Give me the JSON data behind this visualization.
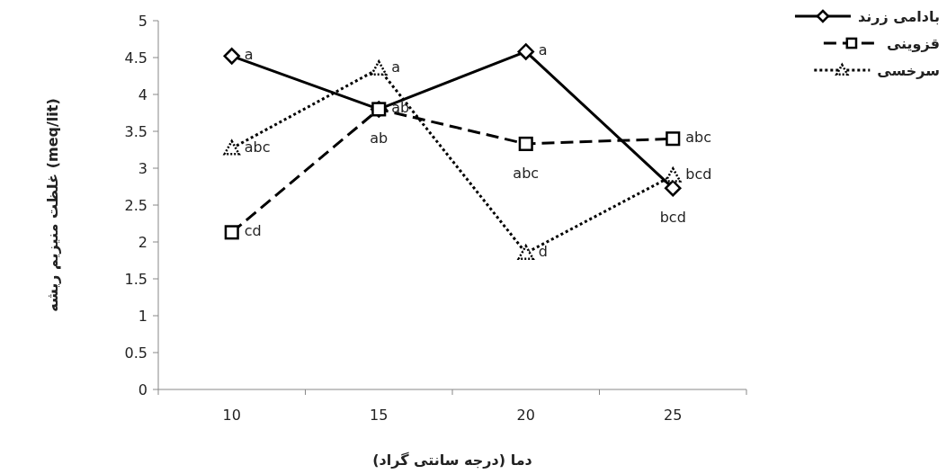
{
  "chart_data": {
    "type": "line",
    "xlabel": "دما (درجه سانتی گراد)",
    "ylabel": "غلظت منیزیم ریشه (meq/lit)",
    "categories": [
      "10",
      "15",
      "20",
      "25"
    ],
    "ylim": [
      0,
      5
    ],
    "yticks": [
      0,
      0.5,
      1,
      1.5,
      2,
      2.5,
      3,
      3.5,
      4,
      4.5,
      5
    ],
    "grid": false,
    "legend": "right",
    "series": [
      {
        "name": "بادامی زرند",
        "color": "#000000",
        "marker": "diamond",
        "line_style": "solid",
        "values": [
          4.52,
          3.8,
          4.58,
          2.73
        ],
        "value_labels": [
          "a",
          "ab",
          "a",
          "bcd"
        ]
      },
      {
        "name": "قزوینی",
        "color": "#000000",
        "marker": "square",
        "line_style": "dashed",
        "values": [
          2.13,
          3.8,
          3.33,
          3.4
        ],
        "value_labels": [
          "cd",
          "ab",
          "abc",
          "abc"
        ]
      },
      {
        "name": "سرخسی",
        "color": "#000000",
        "marker": "triangle",
        "line_style": "dotted",
        "values": [
          3.27,
          4.35,
          1.85,
          2.9
        ],
        "value_labels": [
          "abc",
          "a",
          "d",
          "bcd"
        ]
      }
    ]
  }
}
